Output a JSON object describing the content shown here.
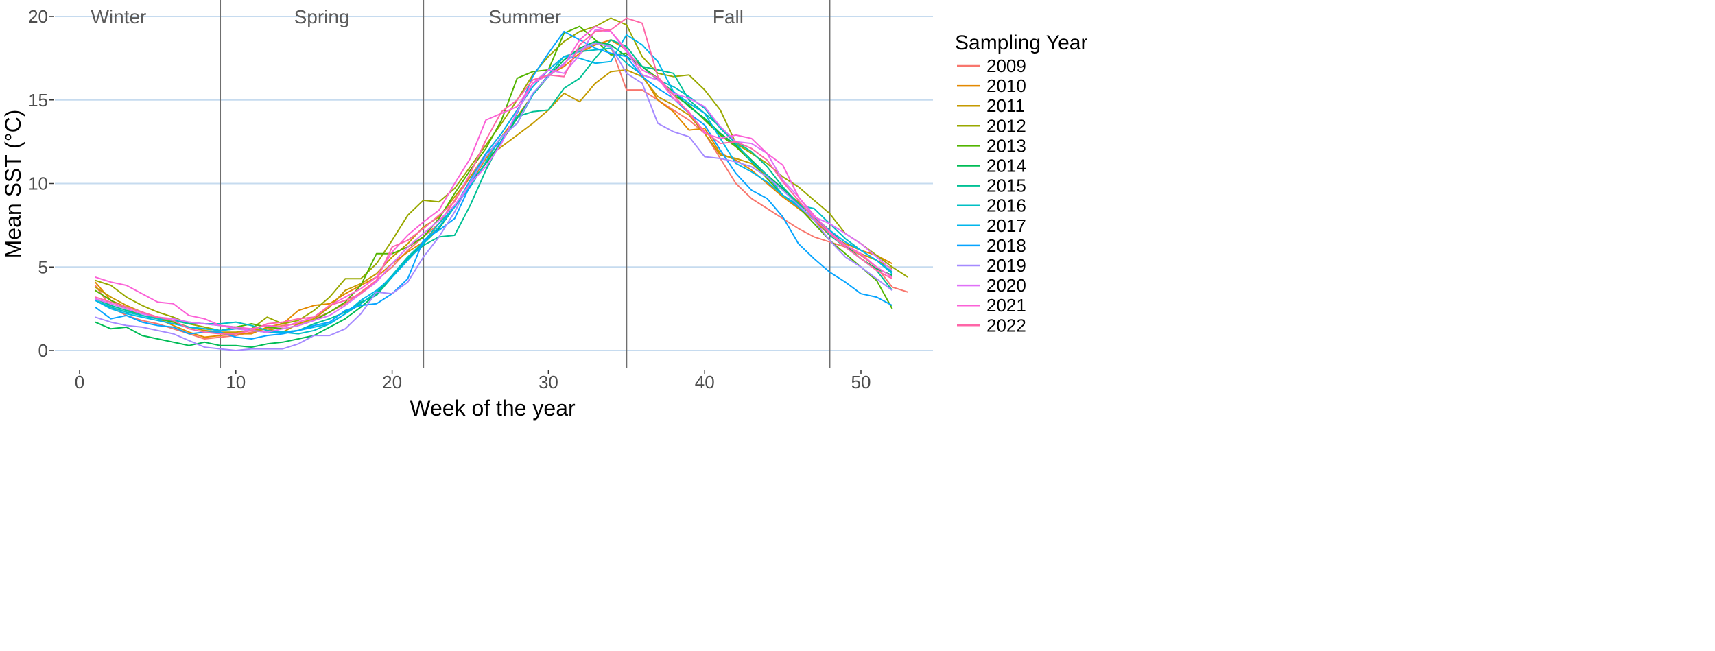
{
  "chart_data": {
    "type": "line",
    "title": "",
    "xlabel": "Week of the year",
    "ylabel": "Mean SST (°C)",
    "xlim": [
      -4,
      56
    ],
    "ylim": [
      -1,
      21
    ],
    "x_ticks": [
      0,
      10,
      20,
      30,
      40,
      50
    ],
    "y_ticks": [
      0,
      5,
      10,
      15,
      20
    ],
    "grid": "horizontal major",
    "season_dividers": [
      9,
      22,
      35,
      48
    ],
    "seasons": [
      {
        "label": "Winter",
        "week": 2.5
      },
      {
        "label": "Spring",
        "week": 15.5
      },
      {
        "label": "Summer",
        "week": 28.5
      },
      {
        "label": "Fall",
        "week": 41.5
      }
    ],
    "legend": {
      "title": "Sampling Year",
      "placement": "right"
    },
    "series": [
      {
        "name": "2009",
        "color": "#F8766D",
        "values": [
          3.9,
          2.6,
          2.1,
          1.8,
          1.6,
          1.3,
          1.0,
          0.7,
          0.8,
          0.9,
          1.1,
          1.3,
          1.5,
          1.6,
          1.9,
          2.3,
          2.8,
          3.5,
          4.2,
          5.0,
          6.0,
          6.8,
          7.6,
          9.0,
          10.4,
          11.8,
          13.0,
          14.4,
          15.8,
          16.8,
          17.6,
          17.9,
          18.4,
          18.2,
          15.6,
          15.6,
          15.0,
          14.4,
          13.8,
          13.0,
          11.5,
          10.0,
          9.1,
          8.5,
          7.9,
          7.3,
          6.8,
          6.5,
          6.2,
          5.7,
          5.0,
          3.8,
          3.5
        ]
      },
      {
        "name": "2010",
        "color": "#E38900",
        "values": [
          4.1,
          3.0,
          2.6,
          2.3,
          1.9,
          1.5,
          1.1,
          0.8,
          0.9,
          1.0,
          1.0,
          1.4,
          1.6,
          2.4,
          2.7,
          2.8,
          3.4,
          3.9,
          4.4,
          5.2,
          5.9,
          6.5,
          7.4,
          8.6,
          10.0,
          11.5,
          12.8,
          14.0,
          15.3,
          16.5,
          17.0,
          17.8,
          18.3,
          18.6,
          18.0,
          16.5,
          15.0,
          14.3,
          13.2,
          13.3,
          11.8,
          11.4,
          10.8,
          10.0,
          9.2,
          8.5,
          7.8,
          6.9,
          6.4,
          6.0,
          5.7,
          5.2
        ]
      },
      {
        "name": "2011",
        "color": "#C49A00",
        "values": [
          3.8,
          3.2,
          2.7,
          2.3,
          2.0,
          1.7,
          1.4,
          1.2,
          1.1,
          1.1,
          1.2,
          1.3,
          1.1,
          1.6,
          1.9,
          2.6,
          3.6,
          4.0,
          4.6,
          5.6,
          6.4,
          7.4,
          8.0,
          9.2,
          10.4,
          11.5,
          12.2,
          12.9,
          13.6,
          14.4,
          15.4,
          14.9,
          16.0,
          16.7,
          16.8,
          16.4,
          15.2,
          14.7,
          14.1,
          13.0,
          11.7,
          11.5,
          11.2,
          10.4,
          9.6,
          8.9,
          8.0,
          7.0,
          6.3,
          5.8,
          5.4,
          4.9
        ]
      },
      {
        "name": "2012",
        "color": "#99A800",
        "values": [
          4.2,
          3.9,
          3.2,
          2.7,
          2.3,
          2.0,
          1.6,
          1.4,
          1.2,
          1.3,
          1.3,
          2.0,
          1.6,
          1.8,
          2.4,
          3.2,
          4.3,
          4.3,
          5.2,
          6.6,
          8.1,
          9.0,
          8.9,
          9.7,
          11.0,
          12.3,
          13.6,
          15.0,
          16.5,
          17.6,
          18.5,
          19.1,
          19.4,
          19.9,
          19.5,
          17.6,
          16.6,
          16.4,
          16.5,
          15.6,
          14.4,
          12.4,
          11.8,
          11.2,
          10.4,
          9.8,
          9.0,
          8.2,
          7.0,
          6.4,
          5.7,
          5.0,
          4.4
        ]
      },
      {
        "name": "2013",
        "color": "#53B400",
        "values": [
          3.6,
          3.0,
          2.5,
          2.1,
          1.9,
          1.7,
          1.4,
          1.3,
          1.2,
          1.4,
          1.6,
          1.4,
          1.3,
          1.5,
          1.8,
          2.3,
          2.9,
          3.9,
          5.8,
          5.8,
          6.2,
          6.8,
          7.9,
          9.4,
          10.8,
          12.1,
          13.8,
          16.3,
          16.7,
          16.8,
          19.0,
          19.4,
          18.6,
          17.7,
          17.8,
          17.0,
          16.3,
          15.3,
          14.7,
          13.8,
          12.9,
          12.2,
          11.3,
          10.3,
          9.3,
          8.6,
          7.6,
          6.6,
          5.8,
          5.0,
          4.2,
          2.5
        ]
      },
      {
        "name": "2014",
        "color": "#00BC56",
        "values": [
          1.7,
          1.3,
          1.4,
          0.9,
          0.7,
          0.5,
          0.3,
          0.5,
          0.3,
          0.3,
          0.2,
          0.4,
          0.5,
          0.7,
          0.9,
          1.4,
          1.9,
          2.6,
          3.4,
          4.5,
          5.6,
          6.4,
          7.3,
          8.6,
          10.0,
          11.2,
          12.5,
          13.9,
          15.3,
          16.4,
          17.4,
          18.1,
          18.5,
          18.3,
          17.6,
          17.0,
          16.2,
          15.5,
          14.6,
          13.9,
          13.0,
          12.3,
          11.4,
          10.5,
          9.7,
          8.8,
          8.0,
          7.2,
          6.3,
          5.5,
          4.9,
          4.5
        ]
      },
      {
        "name": "2015",
        "color": "#00C094",
        "values": [
          3.1,
          2.7,
          2.4,
          2.1,
          1.9,
          1.8,
          1.6,
          1.6,
          1.5,
          1.4,
          1.2,
          1.1,
          1.1,
          1.2,
          1.6,
          1.9,
          2.3,
          2.9,
          3.3,
          4.4,
          5.5,
          6.3,
          6.8,
          6.9,
          8.7,
          10.8,
          12.6,
          14.0,
          14.3,
          14.4,
          15.7,
          16.3,
          17.5,
          18.6,
          18.2,
          17.0,
          16.8,
          16.6,
          15.0,
          14.2,
          13.4,
          12.5,
          11.9,
          11.0,
          9.8,
          8.8,
          8.0,
          6.9,
          6.2,
          5.5,
          4.8,
          3.6
        ]
      },
      {
        "name": "2016",
        "color": "#00BFC4",
        "values": [
          3.0,
          2.6,
          2.3,
          2.1,
          1.9,
          1.8,
          1.7,
          1.6,
          1.6,
          1.7,
          1.5,
          1.2,
          1.1,
          1.0,
          1.2,
          1.6,
          2.2,
          2.8,
          3.5,
          4.5,
          5.6,
          6.5,
          7.6,
          8.6,
          9.8,
          11.3,
          12.8,
          13.6,
          15.3,
          16.5,
          17.6,
          17.9,
          18.0,
          18.1,
          17.2,
          16.5,
          16.2,
          15.8,
          15.2,
          14.5,
          13.3,
          12.4,
          11.3,
          10.5,
          9.3,
          8.7,
          8.5,
          7.6,
          6.7,
          6.0,
          5.4,
          4.7
        ]
      },
      {
        "name": "2017",
        "color": "#00B6EB",
        "values": [
          3.0,
          2.5,
          2.2,
          2.0,
          1.8,
          1.6,
          1.4,
          1.3,
          1.2,
          1.3,
          1.2,
          1.1,
          1.1,
          1.2,
          1.4,
          1.6,
          2.2,
          3.0,
          3.6,
          4.4,
          5.4,
          6.4,
          7.4,
          8.6,
          10.2,
          11.8,
          13.0,
          14.4,
          15.8,
          16.8,
          17.6,
          17.5,
          17.2,
          17.3,
          18.9,
          18.3,
          17.3,
          15.5,
          14.8,
          14.2,
          12.7,
          11.2,
          10.7,
          10.1,
          9.3,
          8.6,
          7.9,
          7.2,
          6.5,
          6.0,
          5.4,
          4.6
        ]
      },
      {
        "name": "2018",
        "color": "#06A4FF",
        "values": [
          2.6,
          1.9,
          2.1,
          1.7,
          1.5,
          1.4,
          1.0,
          1.1,
          1.1,
          0.8,
          0.7,
          0.9,
          1.0,
          1.2,
          1.5,
          1.7,
          2.4,
          2.7,
          2.8,
          3.4,
          4.3,
          6.6,
          7.2,
          7.9,
          9.9,
          11.8,
          12.5,
          14.2,
          16.4,
          17.8,
          19.1,
          18.6,
          18.1,
          17.8,
          17.6,
          16.4,
          15.7,
          15.1,
          14.2,
          13.5,
          12.0,
          10.6,
          9.6,
          9.1,
          8.0,
          6.4,
          5.5,
          4.7,
          4.1,
          3.4,
          3.2,
          2.7
        ]
      },
      {
        "name": "2019",
        "color": "#A58AFF",
        "values": [
          2.0,
          1.7,
          1.5,
          1.4,
          1.2,
          1.0,
          0.6,
          0.2,
          0.1,
          0.0,
          0.1,
          0.1,
          0.1,
          0.4,
          0.9,
          0.9,
          1.3,
          2.2,
          3.5,
          3.4,
          4.1,
          5.6,
          6.8,
          8.3,
          10.1,
          11.6,
          12.8,
          13.6,
          15.4,
          16.4,
          17.2,
          18.0,
          18.4,
          18.2,
          16.6,
          16.0,
          13.6,
          13.1,
          12.8,
          11.6,
          11.5,
          11.3,
          11.0,
          10.4,
          9.6,
          8.7,
          7.8,
          6.6,
          5.6,
          5.0,
          4.3,
          3.6
        ]
      },
      {
        "name": "2020",
        "color": "#DF70F8",
        "values": [
          3.1,
          2.8,
          2.5,
          2.2,
          2.0,
          1.9,
          1.7,
          1.6,
          1.5,
          1.3,
          1.2,
          1.1,
          1.3,
          1.5,
          1.8,
          2.1,
          2.7,
          3.4,
          4.1,
          5.2,
          6.2,
          7.0,
          7.8,
          8.7,
          10.0,
          11.0,
          12.4,
          14.3,
          16.0,
          16.8,
          16.6,
          17.7,
          19.2,
          19.1,
          17.9,
          16.5,
          16.2,
          15.4,
          15.1,
          14.6,
          13.4,
          12.5,
          12.4,
          11.8,
          10.2,
          9.2,
          8.0,
          7.6,
          7.0,
          6.4,
          5.6,
          4.8
        ]
      },
      {
        "name": "2021",
        "color": "#FB61D7",
        "values": [
          4.4,
          4.1,
          3.9,
          3.4,
          2.9,
          2.8,
          2.1,
          1.9,
          1.5,
          1.4,
          1.3,
          1.5,
          1.4,
          1.7,
          2.0,
          2.7,
          3.2,
          3.7,
          4.4,
          5.9,
          6.9,
          7.7,
          8.4,
          10.0,
          11.5,
          13.8,
          14.2,
          14.6,
          16.0,
          16.5,
          17.1,
          18.6,
          19.4,
          19.1,
          18.0,
          16.8,
          16.3,
          15.1,
          14.3,
          13.0,
          12.7,
          12.9,
          12.7,
          11.8,
          11.1,
          9.2,
          8.1,
          7.1,
          6.3,
          5.8,
          5.0,
          4.4
        ]
      },
      {
        "name": "2022",
        "color": "#FF66A8",
        "values": [
          3.2,
          2.9,
          2.6,
          2.3,
          2.0,
          1.8,
          1.3,
          1.1,
          1.0,
          1.0,
          1.2,
          1.6,
          1.7,
          1.9,
          2.0,
          2.7,
          3.0,
          3.4,
          4.2,
          6.2,
          6.6,
          7.3,
          8.1,
          8.9,
          10.6,
          12.6,
          14.3,
          15.0,
          16.2,
          16.5,
          16.4,
          18.3,
          19.1,
          19.2,
          19.9,
          19.6,
          16.4,
          15.3,
          14.2,
          13.1,
          12.4,
          12.5,
          12.1,
          11.4,
          10.1,
          9.0,
          7.9,
          7.0,
          6.2,
          5.5,
          4.8,
          4.3
        ]
      }
    ]
  },
  "colors": {
    "gridline": "#C6DBEF",
    "divider": "#6E6E6E"
  }
}
